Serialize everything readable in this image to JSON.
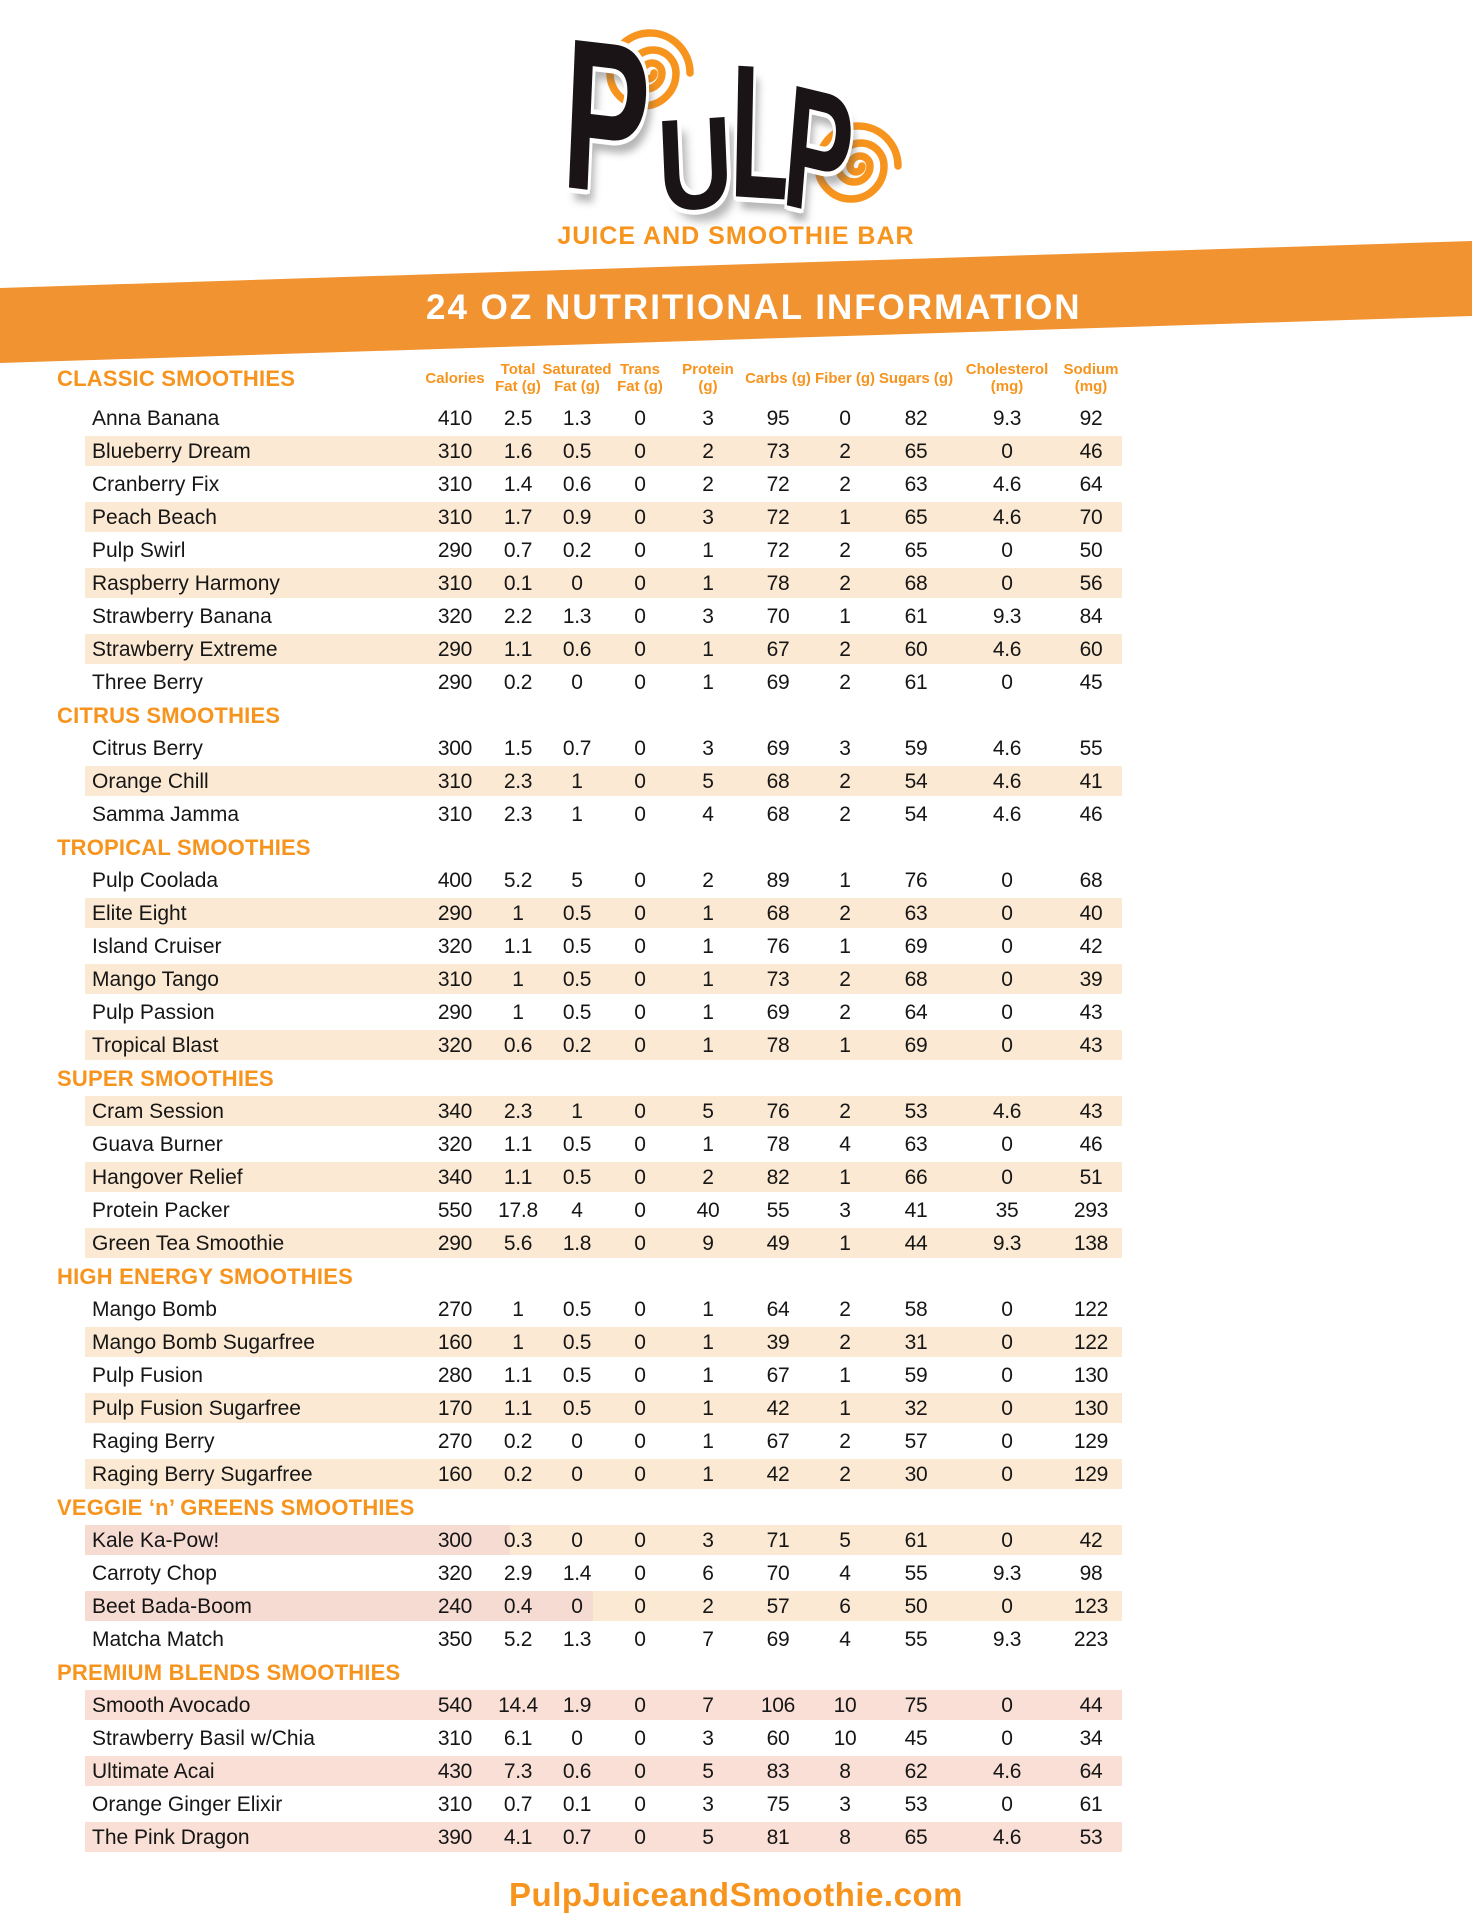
{
  "brand": {
    "logo_letters": [
      "P",
      "U",
      "L",
      "P"
    ],
    "tagline": "JUICE AND SMOOTHIE BAR",
    "website": "PulpJuiceandSmoothie.com"
  },
  "banner": {
    "title": "24 OZ NUTRITIONAL INFORMATION"
  },
  "colors": {
    "orange": "#F7941E",
    "banner_orange": "#F09330",
    "stripe_peach": "#FBE9D3",
    "stripe_pink": "#F9DFD5",
    "stripe_pink_light": "#F6DBD3",
    "text_dark": "#161616",
    "white": "#FFFFFF"
  },
  "table": {
    "columns": [
      {
        "lines": [
          "Calories"
        ]
      },
      {
        "lines": [
          "Total",
          "Fat (g)"
        ]
      },
      {
        "lines": [
          "Saturated",
          "Fat (g)"
        ]
      },
      {
        "lines": [
          "Trans",
          "Fat (g)"
        ]
      },
      {
        "lines": [
          "Protein (g)"
        ]
      },
      {
        "lines": [
          "Carbs (g)"
        ]
      },
      {
        "lines": [
          "Fiber (g)"
        ]
      },
      {
        "lines": [
          "Sugars (g)"
        ]
      },
      {
        "lines": [
          "Cholesterol",
          "(mg)"
        ]
      },
      {
        "lines": [
          "Sodium",
          "(mg)"
        ]
      }
    ],
    "sections": [
      {
        "label": "CLASSIC SMOOTHIES",
        "items": [
          {
            "name": "Anna Banana",
            "values": [
              "410",
              "2.5",
              "1.3",
              "0",
              "3",
              "95",
              "0",
              "82",
              "9.3",
              "92"
            ],
            "stripe": "none"
          },
          {
            "name": "Blueberry Dream",
            "values": [
              "310",
              "1.6",
              "0.5",
              "0",
              "2",
              "73",
              "2",
              "65",
              "0",
              "46"
            ],
            "stripe": "peach"
          },
          {
            "name": "Cranberry Fix",
            "values": [
              "310",
              "1.4",
              "0.6",
              "0",
              "2",
              "72",
              "2",
              "63",
              "4.6",
              "64"
            ],
            "stripe": "none"
          },
          {
            "name": "Peach Beach",
            "values": [
              "310",
              "1.7",
              "0.9",
              "0",
              "3",
              "72",
              "1",
              "65",
              "4.6",
              "70"
            ],
            "stripe": "peach"
          },
          {
            "name": "Pulp Swirl",
            "values": [
              "290",
              "0.7",
              "0.2",
              "0",
              "1",
              "72",
              "2",
              "65",
              "0",
              "50"
            ],
            "stripe": "none"
          },
          {
            "name": "Raspberry Harmony",
            "values": [
              "310",
              "0.1",
              "0",
              "0",
              "1",
              "78",
              "2",
              "68",
              "0",
              "56"
            ],
            "stripe": "peach"
          },
          {
            "name": "Strawberry Banana",
            "values": [
              "320",
              "2.2",
              "1.3",
              "0",
              "3",
              "70",
              "1",
              "61",
              "9.3",
              "84"
            ],
            "stripe": "none"
          },
          {
            "name": "Strawberry Extreme",
            "values": [
              "290",
              "1.1",
              "0.6",
              "0",
              "1",
              "67",
              "2",
              "60",
              "4.6",
              "60"
            ],
            "stripe": "peach"
          },
          {
            "name": "Three Berry",
            "values": [
              "290",
              "0.2",
              "0",
              "0",
              "1",
              "69",
              "2",
              "61",
              "0",
              "45"
            ],
            "stripe": "none"
          }
        ]
      },
      {
        "label": "CITRUS SMOOTHIES",
        "items": [
          {
            "name": "Citrus Berry",
            "values": [
              "300",
              "1.5",
              "0.7",
              "0",
              "3",
              "69",
              "3",
              "59",
              "4.6",
              "55"
            ],
            "stripe": "none"
          },
          {
            "name": "Orange Chill",
            "values": [
              "310",
              "2.3",
              "1",
              "0",
              "5",
              "68",
              "2",
              "54",
              "4.6",
              "41"
            ],
            "stripe": "peach"
          },
          {
            "name": "Samma Jamma",
            "values": [
              "310",
              "2.3",
              "1",
              "0",
              "4",
              "68",
              "2",
              "54",
              "4.6",
              "46"
            ],
            "stripe": "none"
          }
        ]
      },
      {
        "label": "TROPICAL SMOOTHIES",
        "items": [
          {
            "name": "Pulp Coolada",
            "values": [
              "400",
              "5.2",
              "5",
              "0",
              "2",
              "89",
              "1",
              "76",
              "0",
              "68"
            ],
            "stripe": "none"
          },
          {
            "name": "Elite Eight",
            "values": [
              "290",
              "1",
              "0.5",
              "0",
              "1",
              "68",
              "2",
              "63",
              "0",
              "40"
            ],
            "stripe": "peach"
          },
          {
            "name": "Island Cruiser",
            "values": [
              "320",
              "1.1",
              "0.5",
              "0",
              "1",
              "76",
              "1",
              "69",
              "0",
              "42"
            ],
            "stripe": "none"
          },
          {
            "name": "Mango Tango",
            "values": [
              "310",
              "1",
              "0.5",
              "0",
              "1",
              "73",
              "2",
              "68",
              "0",
              "39"
            ],
            "stripe": "peach"
          },
          {
            "name": "Pulp Passion",
            "values": [
              "290",
              "1",
              "0.5",
              "0",
              "1",
              "69",
              "2",
              "64",
              "0",
              "43"
            ],
            "stripe": "none"
          },
          {
            "name": "Tropical Blast",
            "values": [
              "320",
              "0.6",
              "0.2",
              "0",
              "1",
              "78",
              "1",
              "69",
              "0",
              "43"
            ],
            "stripe": "peach"
          }
        ]
      },
      {
        "label": "SUPER SMOOTHIES",
        "items": [
          {
            "name": "Cram Session",
            "values": [
              "340",
              "2.3",
              "1",
              "0",
              "5",
              "76",
              "2",
              "53",
              "4.6",
              "43"
            ],
            "stripe": "peach"
          },
          {
            "name": "Guava Burner",
            "values": [
              "320",
              "1.1",
              "0.5",
              "0",
              "1",
              "78",
              "4",
              "63",
              "0",
              "46"
            ],
            "stripe": "none"
          },
          {
            "name": "Hangover Relief",
            "values": [
              "340",
              "1.1",
              "0.5",
              "0",
              "2",
              "82",
              "1",
              "66",
              "0",
              "51"
            ],
            "stripe": "peach"
          },
          {
            "name": "Protein Packer",
            "values": [
              "550",
              "17.8",
              "4",
              "0",
              "40",
              "55",
              "3",
              "41",
              "35",
              "293"
            ],
            "stripe": "none"
          },
          {
            "name": "Green Tea Smoothie",
            "values": [
              "290",
              "5.6",
              "1.8",
              "0",
              "9",
              "49",
              "1",
              "44",
              "9.3",
              "138"
            ],
            "stripe": "peach"
          }
        ]
      },
      {
        "label": "HIGH ENERGY SMOOTHIES",
        "items": [
          {
            "name": "Mango Bomb",
            "values": [
              "270",
              "1",
              "0.5",
              "0",
              "1",
              "64",
              "2",
              "58",
              "0",
              "122"
            ],
            "stripe": "none"
          },
          {
            "name": "Mango Bomb Sugarfree",
            "values": [
              "160",
              "1",
              "0.5",
              "0",
              "1",
              "39",
              "2",
              "31",
              "0",
              "122"
            ],
            "stripe": "peach"
          },
          {
            "name": "Pulp Fusion",
            "values": [
              "280",
              "1.1",
              "0.5",
              "0",
              "1",
              "67",
              "1",
              "59",
              "0",
              "130"
            ],
            "stripe": "none"
          },
          {
            "name": "Pulp Fusion Sugarfree",
            "values": [
              "170",
              "1.1",
              "0.5",
              "0",
              "1",
              "42",
              "1",
              "32",
              "0",
              "130"
            ],
            "stripe": "peach"
          },
          {
            "name": "Raging Berry",
            "values": [
              "270",
              "0.2",
              "0",
              "0",
              "1",
              "67",
              "2",
              "57",
              "0",
              "129"
            ],
            "stripe": "none"
          },
          {
            "name": "Raging Berry Sugarfree",
            "values": [
              "160",
              "0.2",
              "0",
              "0",
              "1",
              "42",
              "2",
              "30",
              "0",
              "129"
            ],
            "stripe": "peach"
          }
        ]
      },
      {
        "label": "VEGGIE ‘n’ GREENS SMOOTHIES",
        "items": [
          {
            "name": "Kale Ka-Pow!",
            "values": [
              "300",
              "0.3",
              "0",
              "0",
              "3",
              "71",
              "5",
              "61",
              "0",
              "42"
            ],
            "stripe": "pink_peach_41"
          },
          {
            "name": "Carroty Chop",
            "values": [
              "320",
              "2.9",
              "1.4",
              "0",
              "6",
              "70",
              "4",
              "55",
              "9.3",
              "98"
            ],
            "stripe": "none"
          },
          {
            "name": "Beet Bada-Boom",
            "values": [
              "240",
              "0.4",
              "0",
              "0",
              "2",
              "57",
              "6",
              "50",
              "0",
              "123"
            ],
            "stripe": "pink_peach_49"
          },
          {
            "name": "Matcha Match",
            "values": [
              "350",
              "5.2",
              "1.3",
              "0",
              "7",
              "69",
              "4",
              "55",
              "9.3",
              "223"
            ],
            "stripe": "none"
          }
        ]
      },
      {
        "label": "PREMIUM BLENDS SMOOTHIES",
        "items": [
          {
            "name": "Smooth Avocado",
            "values": [
              "540",
              "14.4",
              "1.9",
              "0",
              "7",
              "106",
              "10",
              "75",
              "0",
              "44"
            ],
            "stripe": "pink"
          },
          {
            "name": "Strawberry Basil w/Chia",
            "values": [
              "310",
              "6.1",
              "0",
              "0",
              "3",
              "60",
              "10",
              "45",
              "0",
              "34"
            ],
            "stripe": "none"
          },
          {
            "name": "Ultimate Acai",
            "values": [
              "430",
              "7.3",
              "0.6",
              "0",
              "5",
              "83",
              "8",
              "62",
              "4.6",
              "64"
            ],
            "stripe": "pink"
          },
          {
            "name": "Orange Ginger Elixir",
            "values": [
              "310",
              "0.7",
              "0.1",
              "0",
              "3",
              "75",
              "3",
              "53",
              "0",
              "61"
            ],
            "stripe": "none"
          },
          {
            "name": "The Pink Dragon",
            "values": [
              "390",
              "4.1",
              "0.7",
              "0",
              "5",
              "81",
              "8",
              "65",
              "4.6",
              "53"
            ],
            "stripe": "pink"
          }
        ]
      }
    ]
  }
}
